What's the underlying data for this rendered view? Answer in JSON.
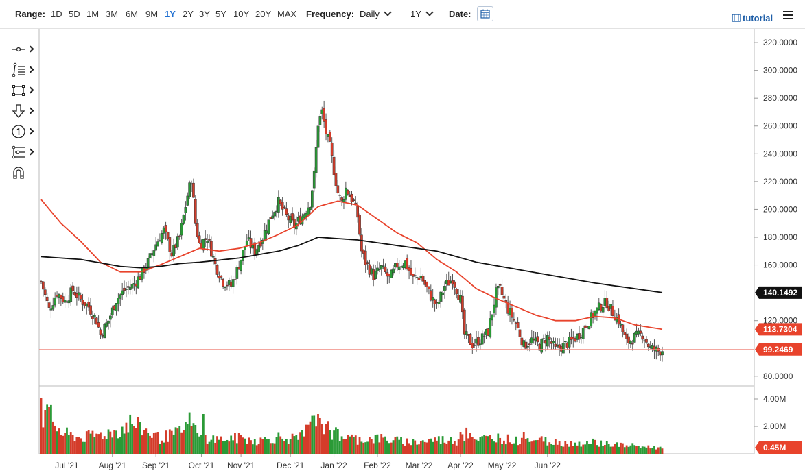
{
  "toolbar": {
    "range_label": "Range:",
    "ranges": [
      "1D",
      "5D",
      "1M",
      "3M",
      "6M",
      "9M",
      "1Y",
      "2Y",
      "3Y",
      "5Y",
      "10Y",
      "20Y",
      "MAX"
    ],
    "active_range": "1Y",
    "frequency_label": "Frequency:",
    "frequency_value": "Daily",
    "period_value": "1Y",
    "date_label": "Date:",
    "tutorial_label": "tutorial"
  },
  "drawing_tools": [
    "crosshair-icon",
    "trendline-icon",
    "rectangle-icon",
    "arrow-down-icon",
    "annotation-icon",
    "fibonacci-icon",
    "magnet-icon"
  ],
  "chart_data": {
    "type": "candlestick",
    "x_ticks": [
      "Jul '21",
      "Aug '21",
      "Sep '21",
      "Oct '21",
      "Nov '21",
      "Dec '21",
      "Jan '22",
      "Feb '22",
      "Mar '22",
      "Apr '22",
      "May '22",
      "Jun '22"
    ],
    "price_ticks": [
      "320.0000",
      "300.0000",
      "280.0000",
      "260.0000",
      "240.0000",
      "220.0000",
      "200.0000",
      "180.0000",
      "160.0000",
      "120.0000",
      "80.0000"
    ],
    "volume_ticks": [
      "4.00M",
      "2.00M"
    ],
    "y_range": [
      73,
      322
    ],
    "volume_range": [
      0,
      4.2
    ],
    "grid": false,
    "price_anchors": [
      [
        0,
        148
      ],
      [
        4,
        128
      ],
      [
        8,
        140
      ],
      [
        12,
        134
      ],
      [
        16,
        142
      ],
      [
        20,
        135
      ],
      [
        24,
        130
      ],
      [
        28,
        120
      ],
      [
        30,
        110
      ],
      [
        34,
        120
      ],
      [
        38,
        135
      ],
      [
        42,
        142
      ],
      [
        46,
        145
      ],
      [
        50,
        152
      ],
      [
        54,
        162
      ],
      [
        58,
        175
      ],
      [
        62,
        185
      ],
      [
        66,
        168
      ],
      [
        70,
        180
      ],
      [
        74,
        210
      ],
      [
        76,
        222
      ],
      [
        78,
        190
      ],
      [
        80,
        175
      ],
      [
        84,
        180
      ],
      [
        88,
        160
      ],
      [
        92,
        148
      ],
      [
        96,
        145
      ],
      [
        100,
        160
      ],
      [
        104,
        178
      ],
      [
        108,
        170
      ],
      [
        112,
        180
      ],
      [
        116,
        195
      ],
      [
        120,
        205
      ],
      [
        124,
        195
      ],
      [
        128,
        188
      ],
      [
        132,
        195
      ],
      [
        136,
        205
      ],
      [
        138,
        225
      ],
      [
        140,
        262
      ],
      [
        142,
        270
      ],
      [
        144,
        255
      ],
      [
        146,
        245
      ],
      [
        148,
        228
      ],
      [
        150,
        212
      ],
      [
        152,
        205
      ],
      [
        154,
        215
      ],
      [
        156,
        210
      ],
      [
        158,
        205
      ],
      [
        160,
        195
      ],
      [
        162,
        170
      ],
      [
        164,
        162
      ],
      [
        168,
        152
      ],
      [
        172,
        158
      ],
      [
        176,
        150
      ],
      [
        180,
        160
      ],
      [
        184,
        162
      ],
      [
        188,
        150
      ],
      [
        192,
        152
      ],
      [
        196,
        140
      ],
      [
        200,
        130
      ],
      [
        204,
        145
      ],
      [
        208,
        150
      ],
      [
        212,
        135
      ],
      [
        214,
        110
      ],
      [
        218,
        103
      ],
      [
        222,
        106
      ],
      [
        226,
        112
      ],
      [
        230,
        140
      ],
      [
        232,
        142
      ],
      [
        236,
        128
      ],
      [
        240,
        118
      ],
      [
        244,
        102
      ],
      [
        248,
        106
      ],
      [
        252,
        102
      ],
      [
        256,
        108
      ],
      [
        260,
        99
      ],
      [
        264,
        102
      ],
      [
        268,
        105
      ],
      [
        272,
        110
      ],
      [
        276,
        118
      ],
      [
        280,
        126
      ],
      [
        284,
        132
      ],
      [
        286,
        133
      ],
      [
        288,
        128
      ],
      [
        292,
        120
      ],
      [
        294,
        112
      ],
      [
        296,
        104
      ],
      [
        300,
        108
      ],
      [
        304,
        110
      ],
      [
        308,
        100
      ],
      [
        312,
        98
      ],
      [
        314,
        99
      ]
    ],
    "sma50_anchors": [
      [
        0,
        207
      ],
      [
        10,
        190
      ],
      [
        20,
        177
      ],
      [
        30,
        162
      ],
      [
        40,
        155
      ],
      [
        50,
        155
      ],
      [
        60,
        160
      ],
      [
        70,
        166
      ],
      [
        80,
        172
      ],
      [
        90,
        170
      ],
      [
        100,
        172
      ],
      [
        110,
        176
      ],
      [
        120,
        182
      ],
      [
        130,
        189
      ],
      [
        140,
        202
      ],
      [
        150,
        206
      ],
      [
        160,
        203
      ],
      [
        170,
        193
      ],
      [
        180,
        183
      ],
      [
        190,
        176
      ],
      [
        200,
        164
      ],
      [
        210,
        155
      ],
      [
        220,
        143
      ],
      [
        230,
        136
      ],
      [
        240,
        130
      ],
      [
        250,
        124
      ],
      [
        260,
        120
      ],
      [
        270,
        120
      ],
      [
        280,
        123
      ],
      [
        290,
        122
      ],
      [
        300,
        117
      ],
      [
        314,
        113.73
      ]
    ],
    "sma200_anchors": [
      [
        0,
        166
      ],
      [
        20,
        164
      ],
      [
        40,
        159
      ],
      [
        50,
        158
      ],
      [
        60,
        159
      ],
      [
        70,
        161
      ],
      [
        80,
        162
      ],
      [
        100,
        165
      ],
      [
        120,
        170
      ],
      [
        130,
        174
      ],
      [
        140,
        180
      ],
      [
        160,
        178
      ],
      [
        180,
        174
      ],
      [
        200,
        170
      ],
      [
        220,
        162
      ],
      [
        240,
        157
      ],
      [
        260,
        152
      ],
      [
        280,
        147
      ],
      [
        300,
        143
      ],
      [
        314,
        140.15
      ]
    ],
    "volume_anchors": [
      [
        0,
        2.6
      ],
      [
        4,
        3.0
      ],
      [
        10,
        1.6
      ],
      [
        20,
        1.2
      ],
      [
        30,
        1.5
      ],
      [
        40,
        1.8
      ],
      [
        45,
        2.4
      ],
      [
        50,
        2.0
      ],
      [
        60,
        1.2
      ],
      [
        70,
        1.6
      ],
      [
        75,
        2.5
      ],
      [
        80,
        1.3
      ],
      [
        90,
        1.1
      ],
      [
        100,
        1.2
      ],
      [
        110,
        1.0
      ],
      [
        120,
        1.3
      ],
      [
        130,
        1.1
      ],
      [
        140,
        2.7
      ],
      [
        145,
        1.9
      ],
      [
        150,
        1.4
      ],
      [
        160,
        1.1
      ],
      [
        170,
        1.2
      ],
      [
        180,
        1.0
      ],
      [
        190,
        0.9
      ],
      [
        200,
        1.1
      ],
      [
        210,
        1.0
      ],
      [
        215,
        1.5
      ],
      [
        220,
        1.0
      ],
      [
        230,
        1.3
      ],
      [
        240,
        1.0
      ],
      [
        250,
        1.1
      ],
      [
        260,
        0.9
      ],
      [
        270,
        0.8
      ],
      [
        280,
        0.9
      ],
      [
        290,
        0.7
      ],
      [
        300,
        0.6
      ],
      [
        314,
        0.45
      ]
    ],
    "volume_spikes": [
      [
        0,
        4.05
      ],
      [
        2,
        3.2
      ],
      [
        74,
        2.2
      ],
      [
        78,
        2.1
      ],
      [
        82,
        2.9
      ],
      [
        140,
        2.9
      ],
      [
        141,
        2.6
      ],
      [
        150,
        1.8
      ],
      [
        212,
        1.6
      ],
      [
        224,
        1.4
      ],
      [
        244,
        1.6
      ]
    ],
    "last_values": {
      "sma200": "140.1492",
      "sma50": "113.7304",
      "close": "99.2469",
      "volume": "0.45M"
    },
    "horizontal_line": 99.2469,
    "colors": {
      "up": "#2a9a36",
      "down": "#d43c2a",
      "sma50": "#e8432c",
      "sma200": "#111111",
      "hline": "#f08a80",
      "badge_red": "#e8432c",
      "badge_black": "#111111"
    }
  }
}
